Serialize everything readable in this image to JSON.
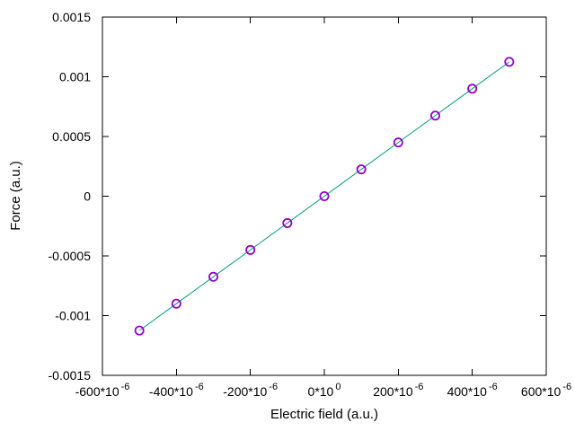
{
  "chart_data": {
    "type": "line",
    "title": "",
    "xlabel": "Electric field (a.u.)",
    "ylabel": "Force (a.u.)",
    "x": [
      -0.0005,
      -0.0004,
      -0.0003,
      -0.0002,
      -0.0001,
      0,
      0.0001,
      0.0002,
      0.0003,
      0.0004,
      0.0005
    ],
    "y": [
      -0.001125,
      -0.0009,
      -0.000675,
      -0.00045,
      -0.000225,
      0,
      0.000225,
      0.00045,
      0.000675,
      0.0009,
      0.001125
    ],
    "xlim": [
      -0.0006,
      0.0006
    ],
    "ylim": [
      -0.0015,
      0.0015
    ],
    "x_ticks": [
      {
        "value": -0.0006,
        "label": "-600*10",
        "exp": "-6"
      },
      {
        "value": -0.0004,
        "label": "-400*10",
        "exp": "-6"
      },
      {
        "value": -0.0002,
        "label": "-200*10",
        "exp": "-6"
      },
      {
        "value": 0,
        "label": "0*10",
        "exp": "0"
      },
      {
        "value": 0.0002,
        "label": "200*10",
        "exp": "-6"
      },
      {
        "value": 0.0004,
        "label": "400*10",
        "exp": "-6"
      },
      {
        "value": 0.0006,
        "label": "600*10",
        "exp": "-6"
      }
    ],
    "y_ticks": [
      {
        "value": 0.0015,
        "label": "0.0015"
      },
      {
        "value": 0.001,
        "label": "0.001"
      },
      {
        "value": 0.0005,
        "label": "0.0005"
      },
      {
        "value": 0,
        "label": "0"
      },
      {
        "value": -0.0005,
        "label": "-0.0005"
      },
      {
        "value": -0.001,
        "label": "-0.001"
      },
      {
        "value": -0.0015,
        "label": "-0.0015"
      }
    ],
    "line_color": "#009E73",
    "marker_color": "#9400D3",
    "marker": "open-circle",
    "border_color": "#000000",
    "grid": false,
    "legend": "none"
  }
}
